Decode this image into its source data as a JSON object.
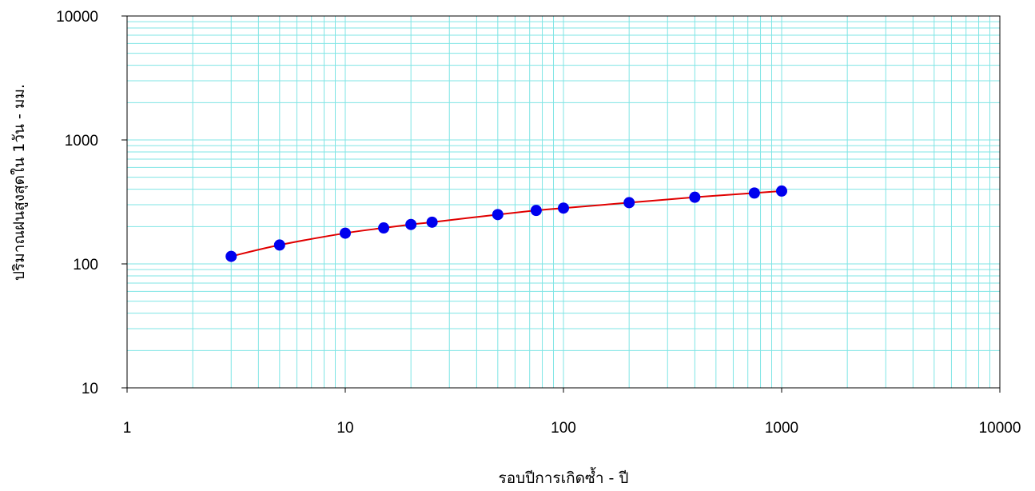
{
  "chart_data": {
    "type": "line",
    "title": "",
    "xlabel": "รอบปีการเกิดซ้ำ - ปี",
    "ylabel": "ปริมาณฝนสูงสุดใน 1วัน - มม.",
    "x_scale": "log",
    "y_scale": "log",
    "xlim": [
      1,
      10000
    ],
    "ylim": [
      10,
      10000
    ],
    "x_ticks": [
      "1",
      "10",
      "100",
      "1000",
      "10000"
    ],
    "y_ticks": [
      "10",
      "100",
      "1000",
      "10000"
    ],
    "grid": true,
    "legend": "none",
    "colors": {
      "grid": "#7fe5e5",
      "frame": "#000000",
      "line": "#e00000",
      "marker": "#0000ee"
    },
    "series": [
      {
        "x": [
          3,
          5,
          10,
          15,
          20,
          25,
          50,
          75,
          100,
          200,
          400,
          750,
          1000
        ],
        "y": [
          115,
          142,
          177,
          195,
          208,
          217,
          250,
          270,
          282,
          312,
          345,
          373,
          387
        ]
      }
    ]
  }
}
